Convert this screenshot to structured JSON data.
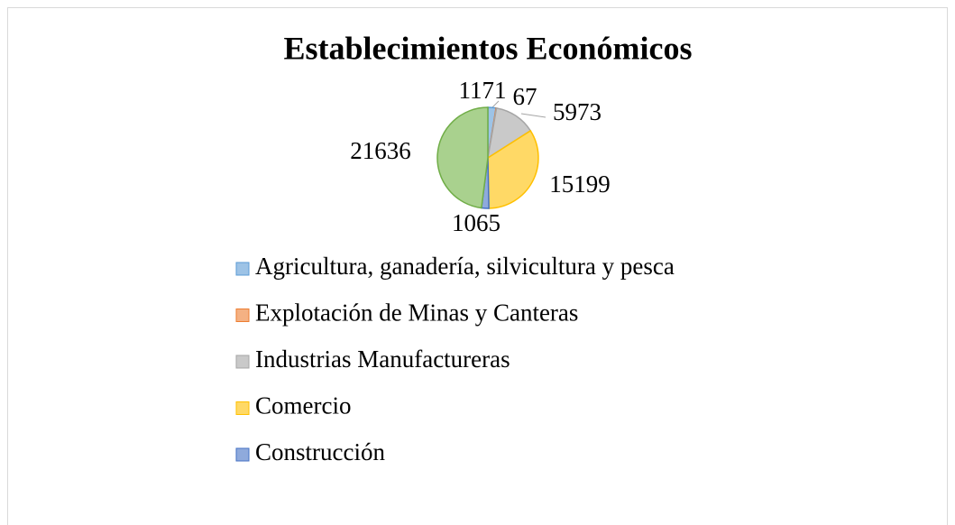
{
  "chart_data": {
    "type": "pie",
    "title": "Establecimientos Económicos",
    "categories": [
      "Agricultura, ganadería, silvicultura y pesca",
      "Explotación de Minas y Canteras",
      "Industrias Manufactureras",
      "Comercio",
      "Construcción",
      null
    ],
    "values": [
      1171,
      67,
      5973,
      15199,
      1065,
      21636
    ],
    "colors": [
      "#9dc3e6",
      "#f4b183",
      "#c9c9c9",
      "#ffd966",
      "#8faadc",
      "#a9d18e"
    ],
    "edge_colors": [
      "#5b9bd5",
      "#ed7d31",
      "#a5a5a5",
      "#ffc000",
      "#4472c4",
      "#70ad47"
    ],
    "legend": "bottom"
  }
}
